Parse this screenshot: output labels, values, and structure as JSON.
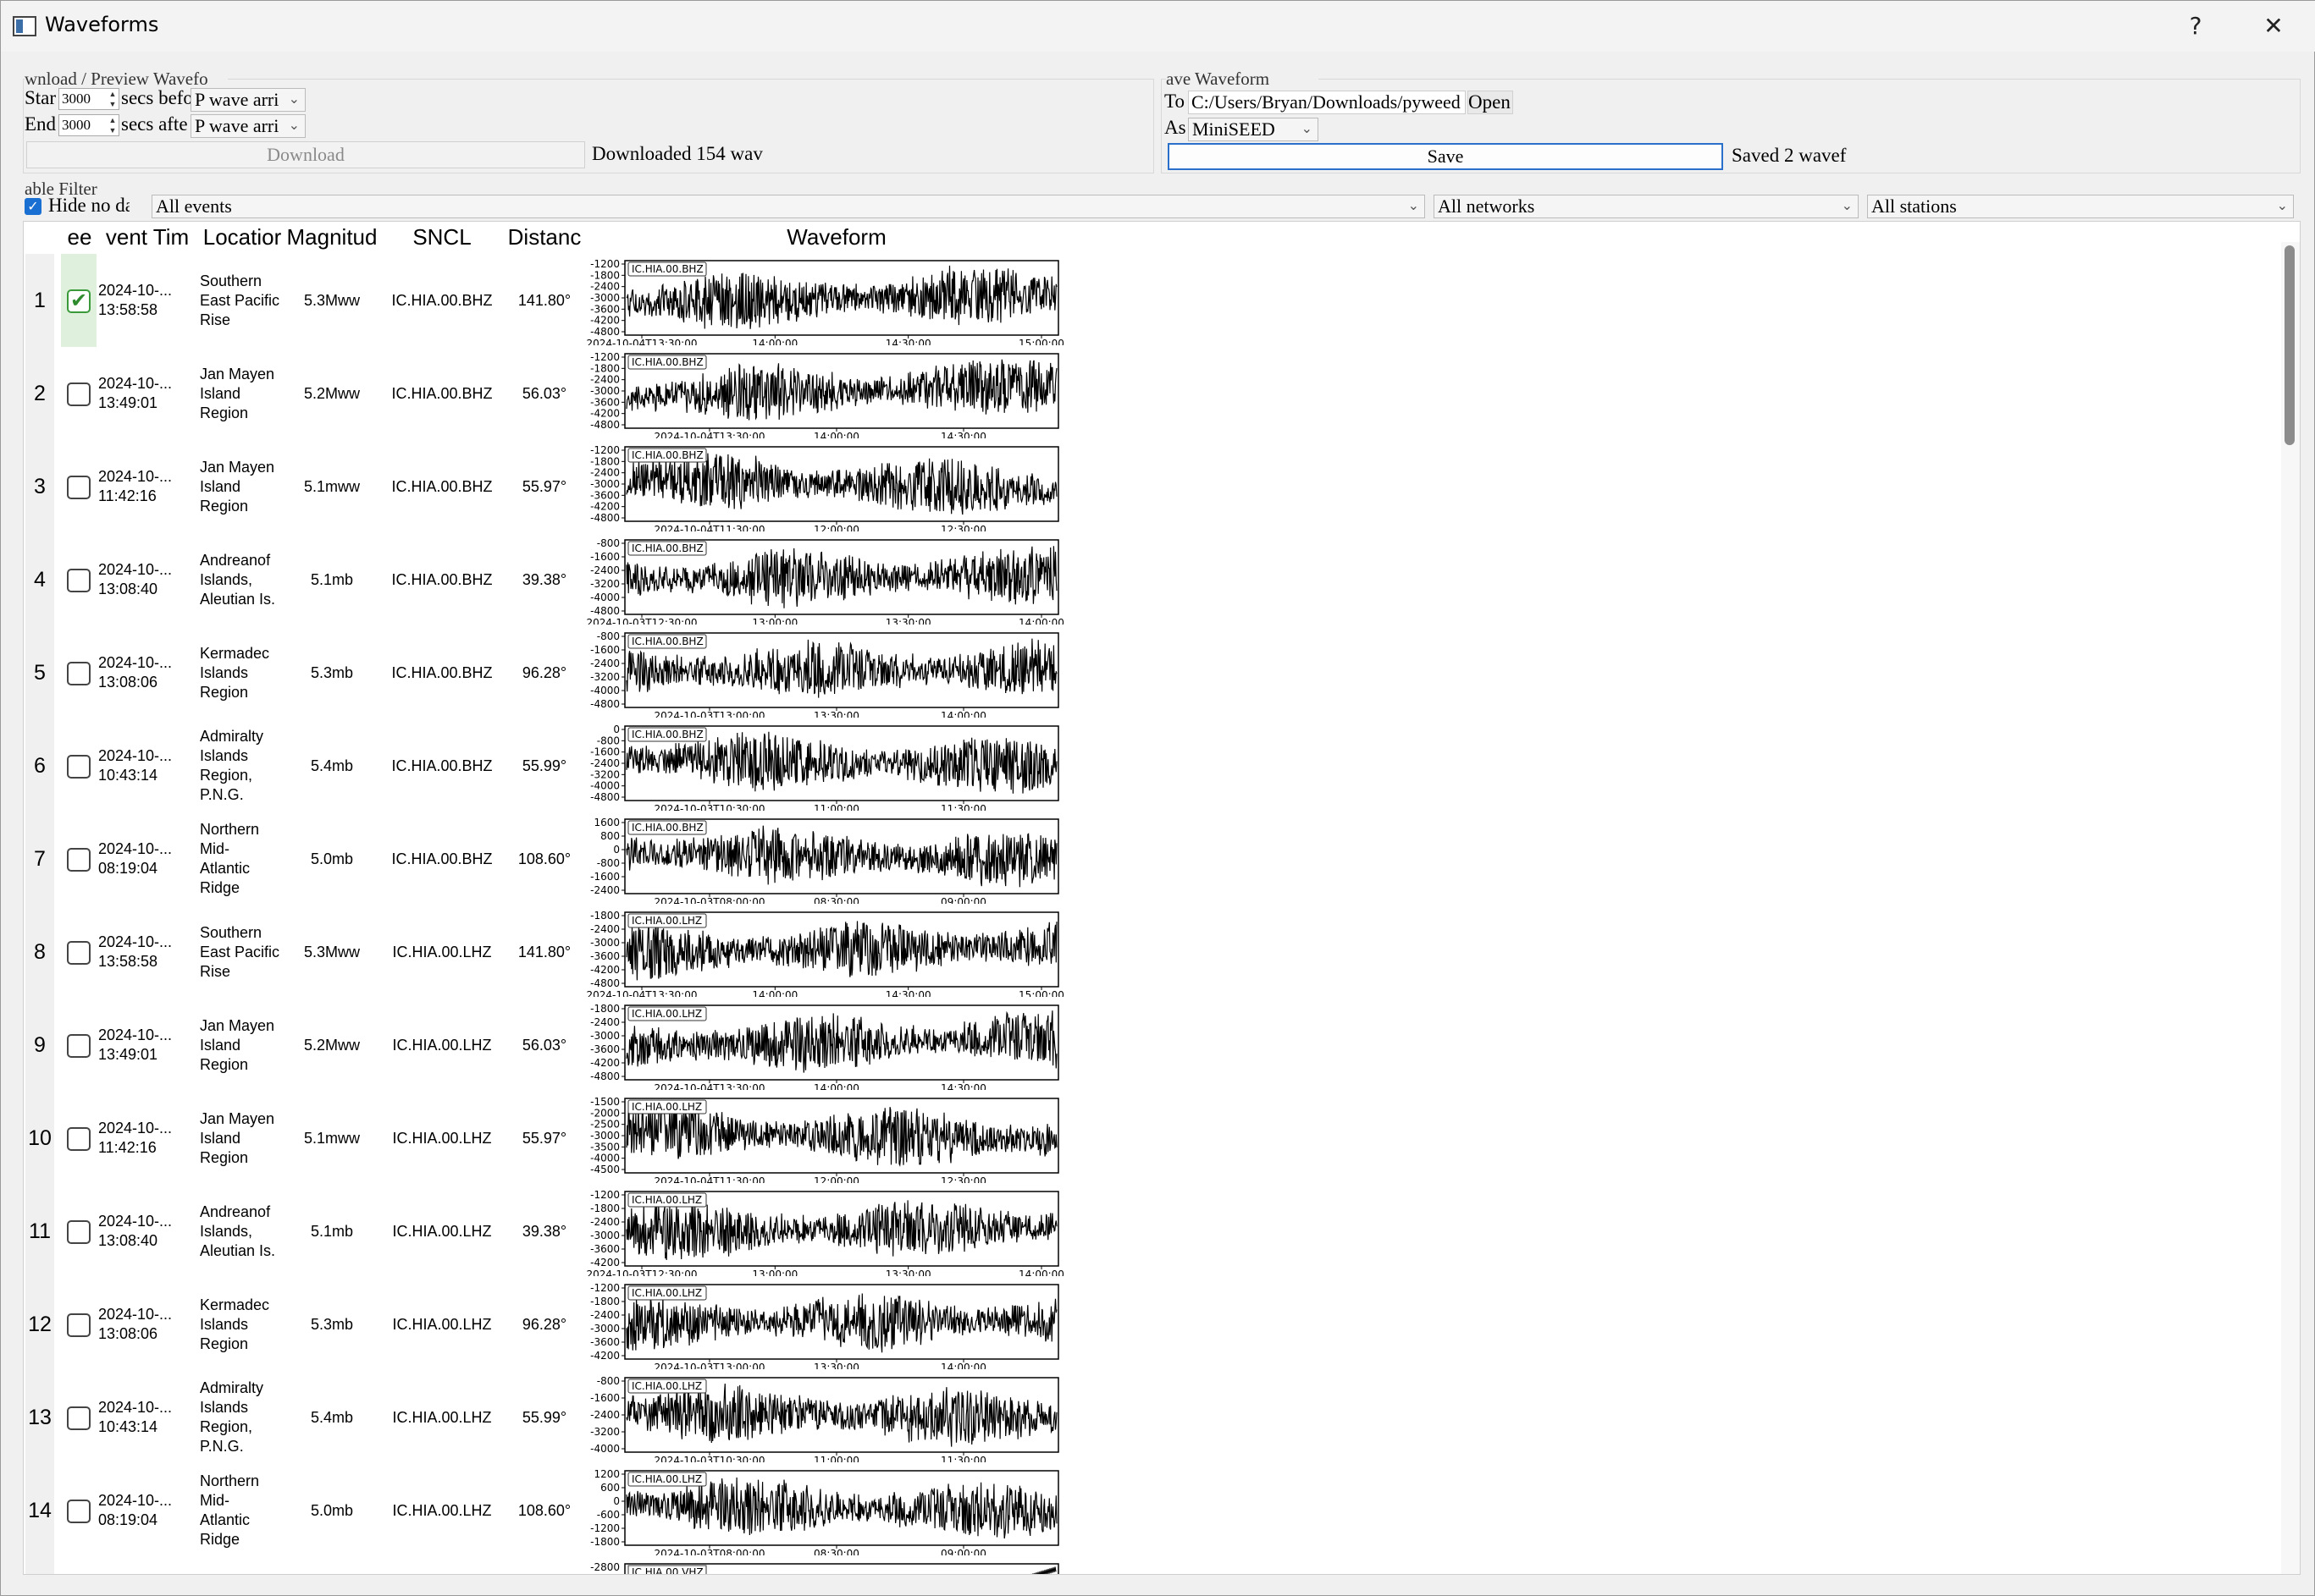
{
  "window": {
    "title": "Waveforms",
    "help_glyph": "?",
    "close_glyph": "✕"
  },
  "download_group": {
    "title": "wnload / Preview Wavefo",
    "start_label": "Star",
    "start_value": "3000",
    "start_secs": "secs befo",
    "start_phase": "P wave arri",
    "end_label": "End",
    "end_value": "3000",
    "end_secs": "secs afte",
    "end_phase": "P wave arri",
    "download_button": "Download",
    "status": "Downloaded 154 wav"
  },
  "save_group": {
    "title": "ave Waveform",
    "to_label": "To",
    "path": "C:/Users/Bryan/Downloads/pyweed",
    "open_button": "Open",
    "as_label": "As",
    "format": "MiniSEED",
    "save_button": "Save",
    "status": "Saved 2 wavef"
  },
  "filter": {
    "title": "able Filter",
    "hide_label": "Hide no da",
    "hide_checked": true,
    "events": "All events",
    "networks": "All networks",
    "stations": "All stations"
  },
  "table": {
    "headers": {
      "keep": "ee",
      "time": "vent Tim",
      "location": "Locatior",
      "magnitude": "Magnitud",
      "sncl": "SNCL",
      "distance": "Distanc",
      "waveform": "Waveform"
    },
    "rows": [
      {
        "num": "1",
        "checked": true,
        "date": "2024-10-...",
        "time": "13:58:58",
        "location": [
          "Southern",
          "East Pacific",
          "Rise"
        ],
        "magnitude": "5.3Mww",
        "sncl": "IC.HIA.00.BHZ",
        "distance": "141.80°",
        "wf_label": "IC.HIA.00.BHZ",
        "yticks": [
          "-1200",
          "-1800",
          "-2400",
          "-3000",
          "-3600",
          "-4200",
          "-4800"
        ],
        "xticks": [
          "2024-10-04T13:30:00",
          "14:00:00",
          "14:30:00",
          "15:00:00"
        ],
        "trend": 0.4,
        "seed": 11
      },
      {
        "num": "2",
        "checked": false,
        "date": "2024-10-...",
        "time": "13:49:01",
        "location": [
          "Jan Mayen",
          "Island",
          "Region"
        ],
        "magnitude": "5.2Mww",
        "sncl": "IC.HIA.00.BHZ",
        "distance": "56.03°",
        "wf_label": "IC.HIA.00.BHZ",
        "yticks": [
          "-1200",
          "-1800",
          "-2400",
          "-3000",
          "-3600",
          "-4200",
          "-4800"
        ],
        "xticks": [
          "2024-10-04T13:30:00",
          "14:00:00",
          "14:30:00"
        ],
        "trend": 0.5,
        "seed": 23
      },
      {
        "num": "3",
        "checked": false,
        "date": "2024-10-...",
        "time": "11:42:16",
        "location": [
          "Jan Mayen",
          "Island",
          "Region"
        ],
        "magnitude": "5.1mww",
        "sncl": "IC.HIA.00.BHZ",
        "distance": "55.97°",
        "wf_label": "IC.HIA.00.BHZ",
        "yticks": [
          "-1200",
          "-1800",
          "-2400",
          "-3000",
          "-3600",
          "-4200",
          "-4800"
        ],
        "xticks": [
          "2024-10-04T11:30:00",
          "12:00:00",
          "12:30:00"
        ],
        "trend": -0.4,
        "seed": 37
      },
      {
        "num": "4",
        "checked": false,
        "date": "2024-10-...",
        "time": "13:08:40",
        "location": [
          "Andreanof",
          "Islands,",
          "Aleutian Is."
        ],
        "magnitude": "5.1mb",
        "sncl": "IC.HIA.00.BHZ",
        "distance": "39.38°",
        "wf_label": "IC.HIA.00.BHZ",
        "yticks": [
          "-800",
          "-1600",
          "-2400",
          "-3200",
          "-4000",
          "-4800"
        ],
        "xticks": [
          "2024-10-03T12:30:00",
          "13:00:00",
          "13:30:00",
          "14:00:00"
        ],
        "trend": 0.2,
        "seed": 41
      },
      {
        "num": "5",
        "checked": false,
        "date": "2024-10-...",
        "time": "13:08:06",
        "location": [
          "Kermadec",
          "Islands",
          "Region"
        ],
        "magnitude": "5.3mb",
        "sncl": "IC.HIA.00.BHZ",
        "distance": "96.28°",
        "wf_label": "IC.HIA.00.BHZ",
        "yticks": [
          "-800",
          "-1600",
          "-2400",
          "-3200",
          "-4000",
          "-4800"
        ],
        "xticks": [
          "2024-10-03T13:00:00",
          "13:30:00",
          "14:00:00"
        ],
        "trend": 0.1,
        "seed": 53
      },
      {
        "num": "6",
        "checked": false,
        "date": "2024-10-...",
        "time": "10:43:14",
        "location": [
          "Admiralty",
          "Islands",
          "Region,",
          "P.N.G."
        ],
        "magnitude": "5.4mb",
        "sncl": "IC.HIA.00.BHZ",
        "distance": "55.99°",
        "wf_label": "IC.HIA.00.BHZ",
        "yticks": [
          "0",
          "-800",
          "-1600",
          "-2400",
          "-3200",
          "-4000",
          "-4800"
        ],
        "xticks": [
          "2024-10-03T10:30:00",
          "11:00:00",
          "11:30:00"
        ],
        "trend": -0.3,
        "seed": 67
      },
      {
        "num": "7",
        "checked": false,
        "date": "2024-10-...",
        "time": "08:19:04",
        "location": [
          "Northern",
          "Mid-",
          "Atlantic",
          "Ridge"
        ],
        "magnitude": "5.0mb",
        "sncl": "IC.HIA.00.BHZ",
        "distance": "108.60°",
        "wf_label": "IC.HIA.00.BHZ",
        "yticks": [
          "1600",
          "800",
          "0",
          "-800",
          "-1600",
          "-2400"
        ],
        "xticks": [
          "2024-10-03T08:00:00",
          "08:30:00",
          "09:00:00"
        ],
        "trend": -0.3,
        "seed": 79
      },
      {
        "num": "8",
        "checked": false,
        "date": "2024-10-...",
        "time": "13:58:58",
        "location": [
          "Southern",
          "East Pacific",
          "Rise"
        ],
        "magnitude": "5.3Mww",
        "sncl": "IC.HIA.00.LHZ",
        "distance": "141.80°",
        "wf_label": "IC.HIA.00.LHZ",
        "yticks": [
          "-1800",
          "-2400",
          "-3000",
          "-3600",
          "-4200",
          "-4800"
        ],
        "xticks": [
          "2024-10-04T13:30:00",
          "14:00:00",
          "14:30:00",
          "15:00:00"
        ],
        "trend": 0.3,
        "seed": 83
      },
      {
        "num": "9",
        "checked": false,
        "date": "2024-10-...",
        "time": "13:49:01",
        "location": [
          "Jan Mayen",
          "Island",
          "Region"
        ],
        "magnitude": "5.2Mww",
        "sncl": "IC.HIA.00.LHZ",
        "distance": "56.03°",
        "wf_label": "IC.HIA.00.LHZ",
        "yticks": [
          "-1800",
          "-2400",
          "-3000",
          "-3600",
          "-4200",
          "-4800"
        ],
        "xticks": [
          "2024-10-04T13:30:00",
          "14:00:00",
          "14:30:00"
        ],
        "trend": 0.4,
        "seed": 97
      },
      {
        "num": "10",
        "checked": false,
        "date": "2024-10-...",
        "time": "11:42:16",
        "location": [
          "Jan Mayen",
          "Island",
          "Region"
        ],
        "magnitude": "5.1mww",
        "sncl": "IC.HIA.00.LHZ",
        "distance": "55.97°",
        "wf_label": "IC.HIA.00.LHZ",
        "yticks": [
          "-1500",
          "-2000",
          "-2500",
          "-3000",
          "-3500",
          "-4000",
          "-4500"
        ],
        "xticks": [
          "2024-10-04T11:30:00",
          "12:00:00",
          "12:30:00"
        ],
        "trend": -0.4,
        "seed": 101
      },
      {
        "num": "11",
        "checked": false,
        "date": "2024-10-...",
        "time": "13:08:40",
        "location": [
          "Andreanof",
          "Islands,",
          "Aleutian Is."
        ],
        "magnitude": "5.1mb",
        "sncl": "IC.HIA.00.LHZ",
        "distance": "39.38°",
        "wf_label": "IC.HIA.00.LHZ",
        "yticks": [
          "-1200",
          "-1800",
          "-2400",
          "-3000",
          "-3600",
          "-4200"
        ],
        "xticks": [
          "2024-10-03T12:30:00",
          "13:00:00",
          "13:30:00",
          "14:00:00"
        ],
        "trend": 0.2,
        "seed": 113
      },
      {
        "num": "12",
        "checked": false,
        "date": "2024-10-...",
        "time": "13:08:06",
        "location": [
          "Kermadec",
          "Islands",
          "Region"
        ],
        "magnitude": "5.3mb",
        "sncl": "IC.HIA.00.LHZ",
        "distance": "96.28°",
        "wf_label": "IC.HIA.00.LHZ",
        "yticks": [
          "-1200",
          "-1800",
          "-2400",
          "-3000",
          "-3600",
          "-4200"
        ],
        "xticks": [
          "2024-10-03T13:00:00",
          "13:30:00",
          "14:00:00"
        ],
        "trend": 0.1,
        "seed": 127
      },
      {
        "num": "13",
        "checked": false,
        "date": "2024-10-...",
        "time": "10:43:14",
        "location": [
          "Admiralty",
          "Islands",
          "Region,",
          "P.N.G."
        ],
        "magnitude": "5.4mb",
        "sncl": "IC.HIA.00.LHZ",
        "distance": "55.99°",
        "wf_label": "IC.HIA.00.LHZ",
        "yticks": [
          "-800",
          "-1600",
          "-2400",
          "-3200",
          "-4000"
        ],
        "xticks": [
          "2024-10-03T10:30:00",
          "11:00:00",
          "11:30:00"
        ],
        "trend": -0.3,
        "seed": 131
      },
      {
        "num": "14",
        "checked": false,
        "date": "2024-10-...",
        "time": "08:19:04",
        "location": [
          "Northern",
          "Mid-",
          "Atlantic",
          "Ridge"
        ],
        "magnitude": "5.0mb",
        "sncl": "IC.HIA.00.LHZ",
        "distance": "108.60°",
        "wf_label": "IC.HIA.00.LHZ",
        "yticks": [
          "1200",
          "600",
          "0",
          "-600",
          "-1200",
          "-1800"
        ],
        "xticks": [
          "2024-10-03T08:00:00",
          "08:30:00",
          "09:00:00"
        ],
        "trend": -0.3,
        "seed": 149
      }
    ],
    "partial_row": {
      "wf_label": "IC.HIA.00.VHZ",
      "ytick": "-2800"
    }
  }
}
